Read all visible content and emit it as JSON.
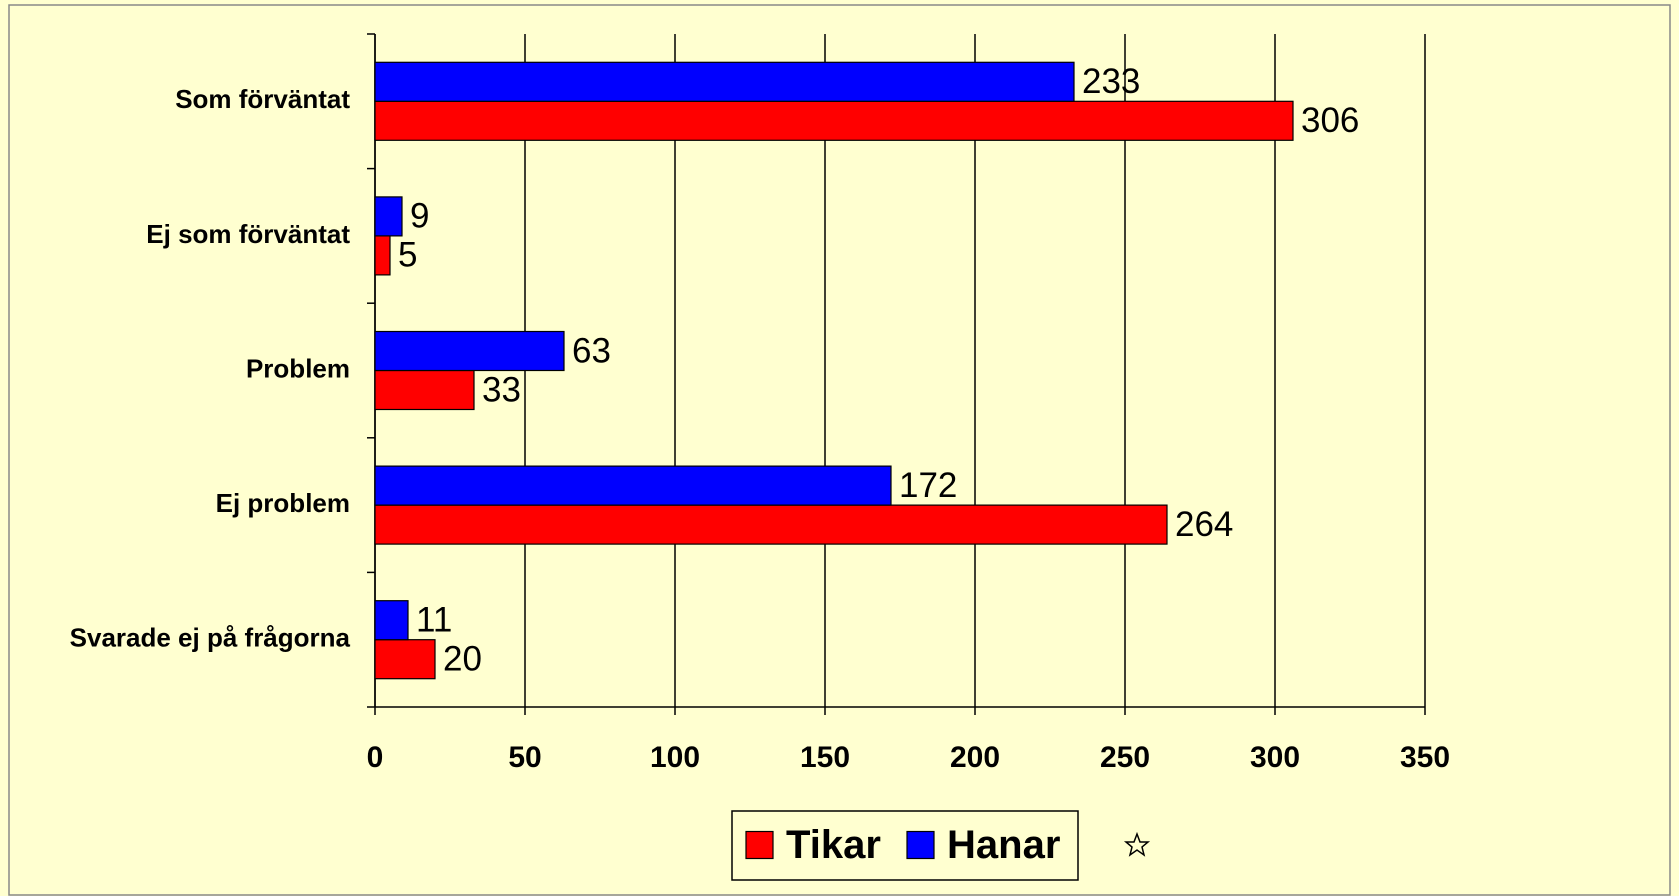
{
  "chart_data": {
    "type": "barh",
    "categories": [
      "Som förväntat",
      "Ej som förväntat",
      "Problem",
      "Ej problem",
      "Svarade ej på frågorna"
    ],
    "series": [
      {
        "name": "Tikar",
        "color": "#ff0000",
        "values": [
          306,
          5,
          33,
          264,
          20
        ]
      },
      {
        "name": "Hanar",
        "color": "#0000ff",
        "values": [
          233,
          9,
          63,
          172,
          11
        ]
      }
    ],
    "xlim": [
      0,
      350
    ],
    "xticks": [
      0,
      50,
      100,
      150,
      200,
      250,
      300,
      350
    ],
    "grid": true,
    "legend": "bottom"
  }
}
